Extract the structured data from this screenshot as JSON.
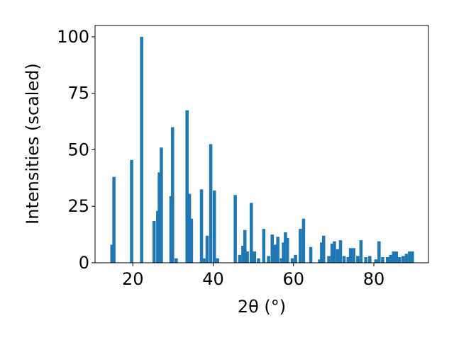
{
  "chart_data": {
    "type": "bar",
    "title": "",
    "xlabel": "2θ (°)",
    "ylabel": "Intensities (scaled)",
    "xlim": [
      10.6,
      93.6
    ],
    "ylim": [
      0,
      105
    ],
    "xticks": [
      20,
      40,
      60,
      80
    ],
    "yticks": [
      0,
      25,
      50,
      75,
      100
    ],
    "grid": false,
    "bar_width_deg": 0.8,
    "bar_color": "#1f77b4",
    "x": [
      14.8,
      15.3,
      19.7,
      22.2,
      25.3,
      26.2,
      26.6,
      27.1,
      29.5,
      29.9,
      30.8,
      33.5,
      34.1,
      34.6,
      37.1,
      37.7,
      38.5,
      39.4,
      40.3,
      41.1,
      45.5,
      46.6,
      47.4,
      47.9,
      48.5,
      49.5,
      50.3,
      51.3,
      52.6,
      53.8,
      54.7,
      55.4,
      56.1,
      57.0,
      57.5,
      58.0,
      58.5,
      59.7,
      60.5,
      61.7,
      62.5,
      64.3,
      66.5,
      67.0,
      67.5,
      68.8,
      69.6,
      70.2,
      71.0,
      71.7,
      72.6,
      73.6,
      74.2,
      75.0,
      76.0,
      76.8,
      78.0,
      79.0,
      80.5,
      81.3,
      82.2,
      83.4,
      84.2,
      84.9,
      85.6,
      86.4,
      87.3,
      88.1,
      88.9,
      89.6
    ],
    "values": [
      8,
      38,
      45.5,
      100,
      18.5,
      23,
      40,
      51,
      29.5,
      60,
      2,
      67.5,
      30.5,
      19.5,
      32.5,
      2,
      12,
      52.5,
      32,
      2,
      30,
      3.5,
      7.5,
      14.5,
      5,
      26.5,
      5,
      2,
      15,
      3,
      12.5,
      8,
      11.5,
      2,
      9,
      13.5,
      11,
      2,
      3.5,
      15,
      19.5,
      7,
      1.5,
      9,
      12,
      3,
      8.5,
      9.5,
      6,
      10,
      3,
      2.5,
      6.5,
      6.5,
      3,
      10,
      2.5,
      3,
      1.5,
      9.5,
      2.5,
      2.5,
      3.5,
      5,
      5,
      2.5,
      3,
      4,
      5,
      5
    ]
  }
}
